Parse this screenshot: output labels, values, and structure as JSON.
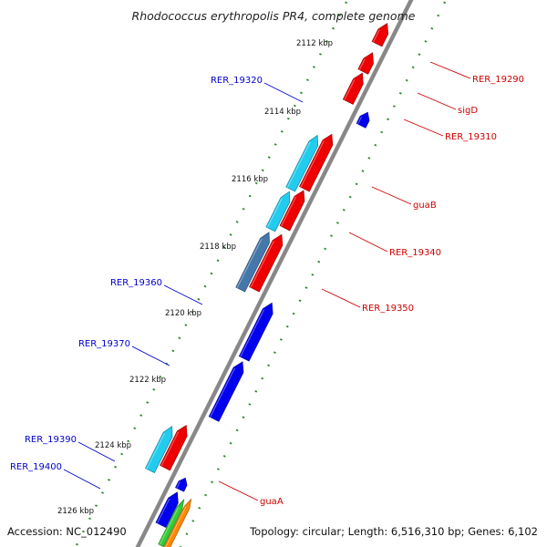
{
  "map": {
    "title": "Rhodococcus erythropolis PR4, complete genome",
    "accession": "Accession: NC_012490",
    "topology": "Topology: circular; Length: 6,516,310 bp; Genes: 6,102"
  },
  "colors": {
    "backbone": "#8a8a8a",
    "tick": "#2e7d1f",
    "label_red": "#cc0000",
    "label_blue": "#0000cc"
  },
  "kbp_ticks": [
    {
      "label": "2112 kbp"
    },
    {
      "label": "2114 kbp"
    },
    {
      "label": "2116 kbp"
    },
    {
      "label": "2118 kbp"
    },
    {
      "label": "2120 kbp"
    },
    {
      "label": "2122 kbp"
    },
    {
      "label": "2124 kbp"
    },
    {
      "label": "2126 kbp"
    }
  ],
  "genes": [
    {
      "name": "RER_19290",
      "strand": "forward",
      "color": "#ee0000"
    },
    {
      "name": "sigD",
      "strand": "forward",
      "color": "#ee0000"
    },
    {
      "name": "RER_19310",
      "strand": "forward",
      "color": "#ee0000"
    },
    {
      "name": "guaB",
      "strand": "forward",
      "color": "#ee0000"
    },
    {
      "name": "RER_19340",
      "strand": "forward",
      "color": "#ee0000"
    },
    {
      "name": "RER_19350",
      "strand": "forward",
      "color": "#ee0000"
    },
    {
      "name": "guaA",
      "strand": "forward",
      "color": "#ee0000"
    },
    {
      "name": "RER_19320",
      "strand": "reverse",
      "color": "#0000ee"
    },
    {
      "name": "RER_19360",
      "strand": "reverse",
      "color": "#0000ee"
    },
    {
      "name": "RER_19370",
      "strand": "reverse",
      "color": "#0000ee"
    },
    {
      "name": "RER_19390",
      "strand": "reverse",
      "color": "#0000ee"
    },
    {
      "name": "RER_19400",
      "strand": "reverse",
      "color": "#0000ee"
    }
  ],
  "feature_tracks": [
    {
      "color": "#22ccee"
    },
    {
      "color": "#4477aa"
    },
    {
      "color": "#ff8800"
    },
    {
      "color": "#33cc33"
    }
  ]
}
